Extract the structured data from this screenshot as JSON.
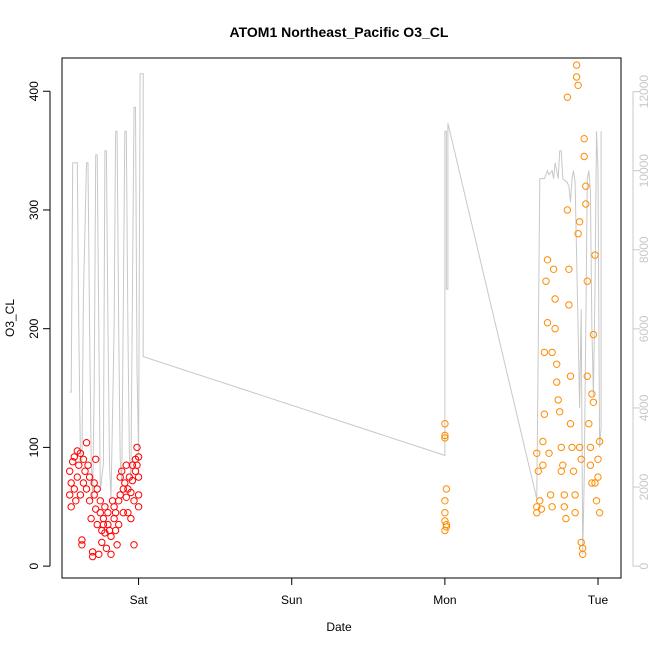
{
  "chart_data": {
    "type": "scatter",
    "title": "ATOM1 Northeast_Pacific O3_CL",
    "xlabel": "Date",
    "ylabel": "O3_CL",
    "x_unit": "days",
    "x_ticks": [
      {
        "x": 1,
        "label": "Sat"
      },
      {
        "x": 2,
        "label": "Sun"
      },
      {
        "x": 3,
        "label": "Mon"
      },
      {
        "x": 4,
        "label": "Tue"
      }
    ],
    "xlim": [
      0.5,
      4.15
    ],
    "ylim": [
      -10,
      428
    ],
    "y_ticks": [
      0,
      100,
      200,
      300,
      400
    ],
    "y2lim": [
      -300,
      12850
    ],
    "y2_ticks": [
      0,
      2000,
      4000,
      6000,
      8000,
      10000,
      12000
    ],
    "series": [
      {
        "color": "#ff0000",
        "marker": "circle-open",
        "points": [
          [
            0.55,
            60
          ],
          [
            0.55,
            80
          ],
          [
            0.56,
            50
          ],
          [
            0.56,
            70
          ],
          [
            0.57,
            88
          ],
          [
            0.58,
            65
          ],
          [
            0.58,
            92
          ],
          [
            0.59,
            55
          ],
          [
            0.6,
            97
          ],
          [
            0.6,
            75
          ],
          [
            0.61,
            85
          ],
          [
            0.62,
            95
          ],
          [
            0.62,
            60
          ],
          [
            0.63,
            22
          ],
          [
            0.63,
            18
          ],
          [
            0.64,
            90
          ],
          [
            0.64,
            70
          ],
          [
            0.65,
            80
          ],
          [
            0.66,
            104
          ],
          [
            0.66,
            65
          ],
          [
            0.67,
            85
          ],
          [
            0.68,
            75
          ],
          [
            0.68,
            55
          ],
          [
            0.69,
            40
          ],
          [
            0.7,
            12
          ],
          [
            0.7,
            8
          ],
          [
            0.71,
            70
          ],
          [
            0.71,
            60
          ],
          [
            0.72,
            90
          ],
          [
            0.72,
            48
          ],
          [
            0.73,
            35
          ],
          [
            0.73,
            65
          ],
          [
            0.74,
            10
          ],
          [
            0.75,
            55
          ],
          [
            0.75,
            45
          ],
          [
            0.76,
            30
          ],
          [
            0.76,
            20
          ],
          [
            0.77,
            40
          ],
          [
            0.77,
            35
          ],
          [
            0.78,
            50
          ],
          [
            0.78,
            28
          ],
          [
            0.79,
            15
          ],
          [
            0.8,
            35
          ],
          [
            0.8,
            45
          ],
          [
            0.81,
            30
          ],
          [
            0.82,
            10
          ],
          [
            0.82,
            25
          ],
          [
            0.83,
            55
          ],
          [
            0.84,
            40
          ],
          [
            0.84,
            50
          ],
          [
            0.85,
            30
          ],
          [
            0.85,
            45
          ],
          [
            0.86,
            18
          ],
          [
            0.87,
            35
          ],
          [
            0.87,
            55
          ],
          [
            0.88,
            60
          ],
          [
            0.88,
            75
          ],
          [
            0.89,
            80
          ],
          [
            0.9,
            65
          ],
          [
            0.9,
            45
          ],
          [
            0.91,
            70
          ],
          [
            0.92,
            85
          ],
          [
            0.92,
            58
          ],
          [
            0.93,
            65
          ],
          [
            0.93,
            45
          ],
          [
            0.94,
            75
          ],
          [
            0.95,
            62
          ],
          [
            0.95,
            40
          ],
          [
            0.96,
            85
          ],
          [
            0.96,
            72
          ],
          [
            0.97,
            55
          ],
          [
            0.97,
            18
          ],
          [
            0.98,
            90
          ],
          [
            0.98,
            80
          ],
          [
            0.99,
            100
          ],
          [
            0.99,
            85
          ],
          [
            1.0,
            75
          ],
          [
            1.0,
            92
          ],
          [
            1.0,
            60
          ],
          [
            1.0,
            50
          ]
        ]
      },
      {
        "color": "#ff8c00",
        "marker": "circle-open",
        "points": [
          [
            3.0,
            120
          ],
          [
            3.0,
            110
          ],
          [
            3.0,
            108
          ],
          [
            3.01,
            65
          ],
          [
            3.0,
            55
          ],
          [
            3.0,
            45
          ],
          [
            3.01,
            35
          ],
          [
            3.0,
            30
          ],
          [
            3.01,
            33
          ],
          [
            3.0,
            38
          ],
          [
            3.6,
            95
          ],
          [
            3.61,
            80
          ],
          [
            3.6,
            50
          ],
          [
            3.6,
            45
          ],
          [
            3.62,
            55
          ],
          [
            3.63,
            48
          ],
          [
            3.64,
            85
          ],
          [
            3.64,
            105
          ],
          [
            3.65,
            128
          ],
          [
            3.65,
            180
          ],
          [
            3.66,
            240
          ],
          [
            3.67,
            258
          ],
          [
            3.67,
            205
          ],
          [
            3.68,
            95
          ],
          [
            3.69,
            60
          ],
          [
            3.7,
            50
          ],
          [
            3.7,
            180
          ],
          [
            3.71,
            250
          ],
          [
            3.72,
            225
          ],
          [
            3.72,
            200
          ],
          [
            3.73,
            170
          ],
          [
            3.73,
            155
          ],
          [
            3.74,
            140
          ],
          [
            3.75,
            130
          ],
          [
            3.76,
            100
          ],
          [
            3.76,
            80
          ],
          [
            3.77,
            85
          ],
          [
            3.78,
            60
          ],
          [
            3.78,
            50
          ],
          [
            3.79,
            40
          ],
          [
            3.8,
            395
          ],
          [
            3.8,
            300
          ],
          [
            3.81,
            250
          ],
          [
            3.81,
            220
          ],
          [
            3.82,
            160
          ],
          [
            3.82,
            120
          ],
          [
            3.83,
            100
          ],
          [
            3.84,
            80
          ],
          [
            3.85,
            60
          ],
          [
            3.85,
            45
          ],
          [
            3.86,
            422
          ],
          [
            3.86,
            412
          ],
          [
            3.87,
            405
          ],
          [
            3.87,
            280
          ],
          [
            3.88,
            290
          ],
          [
            3.88,
            100
          ],
          [
            3.89,
            90
          ],
          [
            3.89,
            20
          ],
          [
            3.9,
            15
          ],
          [
            3.9,
            10
          ],
          [
            3.91,
            360
          ],
          [
            3.91,
            345
          ],
          [
            3.92,
            320
          ],
          [
            3.92,
            305
          ],
          [
            3.93,
            240
          ],
          [
            3.93,
            160
          ],
          [
            3.94,
            120
          ],
          [
            3.95,
            100
          ],
          [
            3.95,
            85
          ],
          [
            3.96,
            70
          ],
          [
            3.96,
            145
          ],
          [
            3.97,
            138
          ],
          [
            3.97,
            195
          ],
          [
            3.98,
            262
          ],
          [
            3.98,
            70
          ],
          [
            3.99,
            55
          ],
          [
            4.0,
            90
          ],
          [
            4.0,
            75
          ],
          [
            4.01,
            45
          ],
          [
            4.01,
            105
          ]
        ]
      }
    ],
    "right_axis_line": {
      "color": "#c8c8c8",
      "points": [
        [
          0.55,
          4400
        ],
        [
          0.56,
          4400
        ],
        [
          0.57,
          10200
        ],
        [
          0.6,
          10200
        ],
        [
          0.61,
          6000
        ],
        [
          0.62,
          2800
        ],
        [
          0.63,
          2600
        ],
        [
          0.64,
          6800
        ],
        [
          0.66,
          10200
        ],
        [
          0.67,
          10200
        ],
        [
          0.68,
          6000
        ],
        [
          0.69,
          2800
        ],
        [
          0.7,
          1700
        ],
        [
          0.71,
          4500
        ],
        [
          0.72,
          10400
        ],
        [
          0.73,
          10400
        ],
        [
          0.74,
          6000
        ],
        [
          0.75,
          1900
        ],
        [
          0.77,
          2600
        ],
        [
          0.78,
          10500
        ],
        [
          0.79,
          10500
        ],
        [
          0.8,
          6200
        ],
        [
          0.81,
          2600
        ],
        [
          0.82,
          1700
        ],
        [
          0.84,
          6000
        ],
        [
          0.85,
          11000
        ],
        [
          0.86,
          11000
        ],
        [
          0.87,
          6000
        ],
        [
          0.88,
          2700
        ],
        [
          0.89,
          2100
        ],
        [
          0.9,
          6500
        ],
        [
          0.91,
          11000
        ],
        [
          0.92,
          11000
        ],
        [
          0.93,
          6000
        ],
        [
          0.94,
          2800
        ],
        [
          0.95,
          2200
        ],
        [
          0.96,
          6800
        ],
        [
          0.97,
          11600
        ],
        [
          0.98,
          11600
        ],
        [
          0.99,
          5000
        ],
        [
          1.0,
          2800
        ],
        [
          1.01,
          12450
        ],
        [
          1.03,
          12450
        ],
        [
          1.03,
          5300
        ],
        [
          3.0,
          2800
        ],
        [
          3.0,
          11000
        ],
        [
          3.01,
          11000
        ],
        [
          3.01,
          7000
        ],
        [
          3.02,
          7000
        ],
        [
          3.02,
          11200
        ],
        [
          3.6,
          1700
        ],
        [
          3.62,
          9800
        ],
        [
          3.65,
          9800
        ],
        [
          3.66,
          9900
        ],
        [
          3.67,
          10000
        ],
        [
          3.68,
          9900
        ],
        [
          3.7,
          10000
        ],
        [
          3.71,
          9800
        ],
        [
          3.72,
          10200
        ],
        [
          3.73,
          10000
        ],
        [
          3.74,
          9800
        ],
        [
          3.75,
          10500
        ],
        [
          3.76,
          10500
        ],
        [
          3.77,
          9800
        ],
        [
          3.8,
          9700
        ],
        [
          3.81,
          9600
        ],
        [
          3.82,
          9200
        ],
        [
          3.83,
          9800
        ],
        [
          3.84,
          10000
        ],
        [
          3.85,
          9700
        ],
        [
          3.87,
          6000
        ],
        [
          3.88,
          4000
        ],
        [
          3.89,
          6500
        ],
        [
          3.9,
          300
        ],
        [
          3.91,
          2200
        ],
        [
          3.92,
          6000
        ],
        [
          3.93,
          9800
        ],
        [
          3.94,
          10000
        ],
        [
          3.95,
          9500
        ],
        [
          3.96,
          6000
        ],
        [
          3.97,
          4300
        ],
        [
          3.98,
          7000
        ],
        [
          3.99,
          11000
        ],
        [
          4.0,
          10000
        ],
        [
          4.01,
          3000
        ],
        [
          4.02,
          3500
        ],
        [
          4.02,
          11000
        ]
      ]
    },
    "grid": false,
    "legend": "none"
  }
}
